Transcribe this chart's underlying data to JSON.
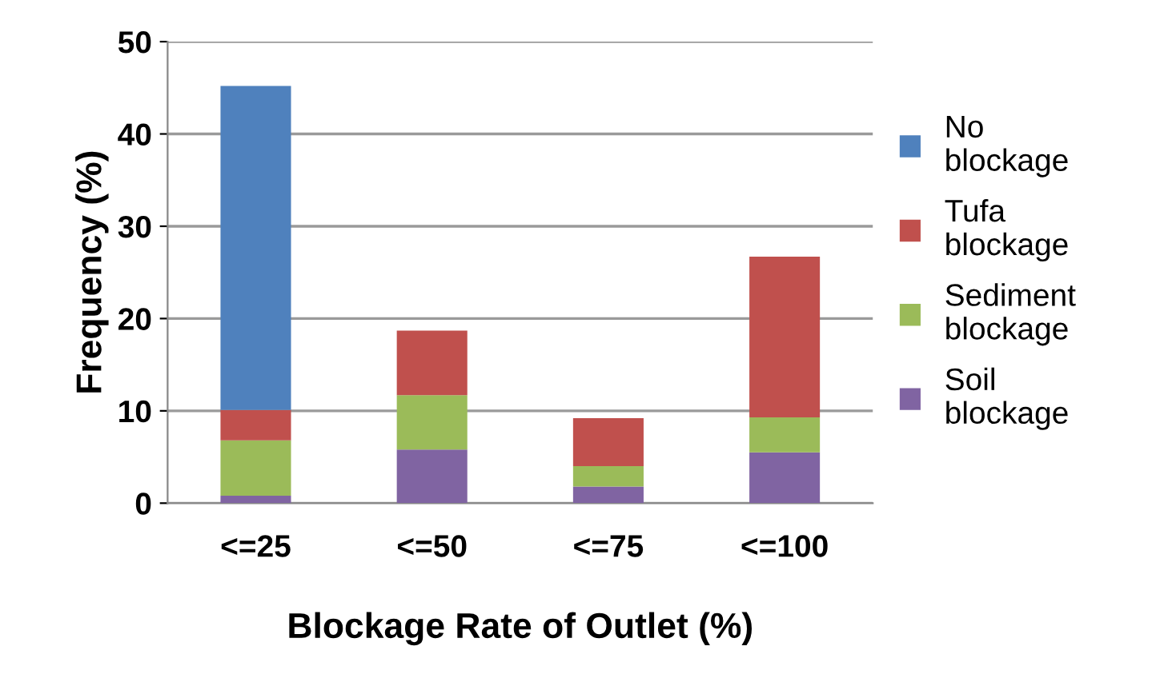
{
  "chart_data": {
    "type": "bar",
    "stacked": true,
    "xlabel": "Blockage Rate of Outlet (%)",
    "ylabel": "Frequency (%)",
    "categories": [
      "<=25",
      "<=50",
      "<=75",
      "<=100"
    ],
    "series": [
      {
        "name": "Soil blockage",
        "color": "#8064a2",
        "values": [
          0.8,
          5.8,
          1.8,
          5.5
        ]
      },
      {
        "name": "Sediment blockage",
        "color": "#9bbb59",
        "values": [
          6.0,
          5.9,
          2.2,
          3.8
        ]
      },
      {
        "name": "Tufa blockage",
        "color": "#c0504d",
        "values": [
          3.3,
          7.0,
          5.2,
          17.4
        ]
      },
      {
        "name": "No blockage",
        "color": "#4f81bd",
        "values": [
          35.1,
          0,
          0,
          0
        ]
      }
    ],
    "ylim": [
      0,
      50
    ],
    "yticks": [
      0,
      10,
      20,
      30,
      40,
      50
    ],
    "grid": "y",
    "legend": "right"
  }
}
